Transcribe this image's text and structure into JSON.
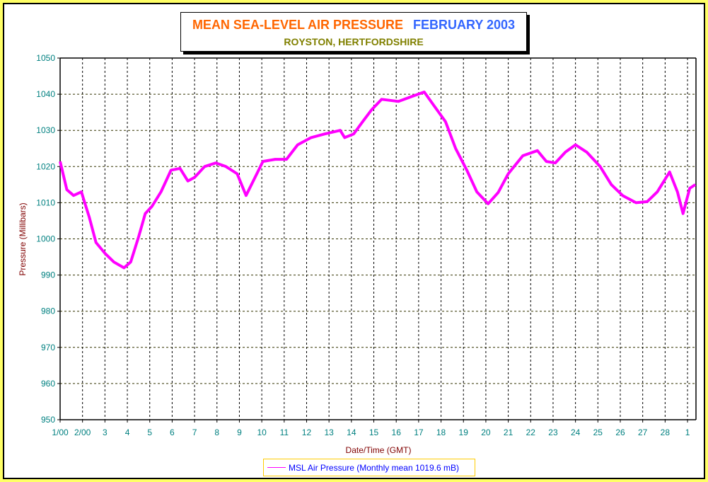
{
  "chart_data": {
    "type": "line",
    "title": "MEAN SEA-LEVEL AIR PRESSURE",
    "title_period": "FEBRUARY 2003",
    "subtitle": "ROYSTON, HERTFORDSHIRE",
    "xlabel": "Date/Time (GMT)",
    "ylabel": "Pressure (Millibars)",
    "ylim": [
      950,
      1050
    ],
    "yticks": [
      950,
      960,
      970,
      980,
      990,
      1000,
      1010,
      1020,
      1030,
      1040,
      1050
    ],
    "xlim_days": [
      0,
      28.38
    ],
    "xtick_labels": [
      "1/00",
      "2/00",
      "3",
      "4",
      "5",
      "6",
      "7",
      "8",
      "9",
      "10",
      "11",
      "12",
      "13",
      "14",
      "15",
      "16",
      "17",
      "18",
      "19",
      "20",
      "21",
      "22",
      "23",
      "24",
      "25",
      "26",
      "27",
      "28",
      "1"
    ],
    "grid": true,
    "legend_position": "bottom-center",
    "colors": {
      "series": "#ff00ff",
      "ytick": "#008080",
      "axis_label": "#800000"
    },
    "series": [
      {
        "name": "MSL Air Pressure (Monthly mean 1019.6 mB)",
        "x_days": [
          0,
          0.3,
          0.6,
          0.95,
          1.1,
          1.3,
          1.6,
          2.0,
          2.4,
          2.85,
          3.15,
          3.5,
          3.8,
          4.1,
          4.5,
          4.95,
          5.35,
          5.7,
          6.0,
          6.45,
          6.95,
          7.4,
          7.9,
          8.3,
          8.7,
          9.05,
          9.6,
          10.1,
          10.6,
          11.2,
          11.8,
          12.5,
          12.7,
          13.1,
          13.5,
          13.9,
          14.35,
          15.1,
          15.8,
          16.25,
          16.7,
          17.2,
          17.65,
          18.15,
          18.6,
          19.1,
          19.55,
          20.0,
          20.65,
          21.3,
          21.7,
          22.1,
          22.55,
          23.0,
          23.5,
          24.1,
          24.6,
          25.1,
          25.7,
          26.2,
          26.65,
          27.2,
          27.55,
          27.8,
          28.1,
          28.35
        ],
        "values": [
          1021.4,
          1013.6,
          1012,
          1013,
          1010,
          1006,
          999,
          996,
          993.6,
          992,
          993.6,
          1000.5,
          1007,
          1009,
          1013,
          1019,
          1019.5,
          1016,
          1017,
          1020,
          1021,
          1020,
          1018,
          1012,
          1017,
          1021.4,
          1022,
          1022,
          1026,
          1028,
          1029,
          1030,
          1028,
          1029,
          1032.4,
          1035.7,
          1038.6,
          1038,
          1039.6,
          1040.6,
          1036.7,
          1032.4,
          1025,
          1019,
          1013,
          1009.7,
          1012.8,
          1018,
          1023,
          1024.4,
          1021.4,
          1021,
          1024,
          1026,
          1024,
          1020,
          1015,
          1012,
          1010,
          1010.3,
          1013,
          1018.5,
          1013,
          1007,
          1014,
          1015
        ]
      }
    ]
  }
}
